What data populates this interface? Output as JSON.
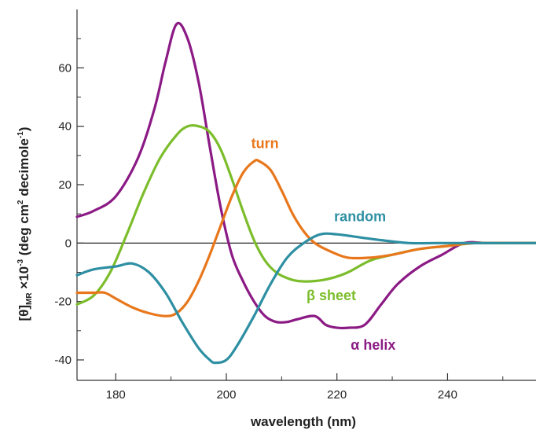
{
  "chart_data": {
    "type": "line",
    "title": "",
    "xlabel": "wavelength (nm)",
    "ylabel": "[θ]MR ×10-3 (deg cm2 decimole-1)",
    "ylabel_parts": {
      "theta": "[θ]",
      "theta_sub": "MR",
      "times10": " ×10",
      "exp": "-3",
      "unit_a": " (deg cm",
      "cm_exp": "2",
      "unit_b": " decimole",
      "mole_exp": "-1",
      "close": ")"
    },
    "xlim": [
      173,
      256
    ],
    "ylim": [
      -47,
      80
    ],
    "xticks": [
      180,
      200,
      220,
      240
    ],
    "yticks": [
      -40,
      -20,
      0,
      20,
      40,
      60
    ],
    "zero_line": true,
    "grid": false,
    "series": [
      {
        "name": "α helix",
        "color": "#8b1a85",
        "x": [
          173,
          176,
          180,
          184,
          187,
          189,
          191,
          193,
          195,
          197,
          199,
          201,
          203,
          205,
          207,
          209,
          211,
          213,
          216,
          218,
          220,
          222,
          225,
          228,
          231,
          235,
          239,
          243,
          247,
          251,
          256
        ],
        "y": [
          9,
          11,
          16,
          29,
          46,
          62,
          75,
          70,
          55,
          33,
          12,
          -4,
          -13,
          -20,
          -25,
          -27,
          -27,
          -26,
          -25,
          -28,
          -29,
          -29,
          -28,
          -21,
          -14,
          -8,
          -4,
          0,
          0,
          0,
          0
        ]
      },
      {
        "name": "β sheet",
        "color": "#7cbd2c",
        "x": [
          173,
          176,
          179,
          182,
          185,
          188,
          191,
          193,
          195,
          197,
          199,
          201,
          203,
          205,
          207,
          209,
          211,
          213,
          216,
          219,
          222,
          226,
          230,
          235,
          240,
          245,
          250,
          256
        ],
        "y": [
          -21,
          -18,
          -10,
          3,
          17,
          29,
          37,
          40,
          40,
          38,
          32,
          22,
          11,
          1,
          -6,
          -10,
          -12,
          -13,
          -13,
          -12,
          -10,
          -6,
          -4,
          -2,
          -1,
          0,
          0,
          0
        ]
      },
      {
        "name": "turn",
        "color": "#e8771c",
        "x": [
          173,
          176,
          178,
          180,
          183,
          186,
          189,
          191,
          193,
          195,
          197,
          199,
          201,
          203,
          205,
          206,
          208,
          210,
          212,
          214,
          216,
          219,
          222,
          226,
          230,
          235,
          240,
          245,
          256
        ],
        "y": [
          -17,
          -17,
          -17,
          -19,
          -22,
          -24,
          -25,
          -24,
          -20,
          -13,
          -4,
          6,
          16,
          24,
          28,
          28,
          25,
          18,
          10,
          4,
          0,
          -3,
          -5,
          -5,
          -4,
          -2,
          -1,
          0,
          0
        ]
      },
      {
        "name": "random",
        "color": "#2e8fa3",
        "x": [
          173,
          176,
          180,
          183,
          186,
          189,
          192,
          195,
          197,
          198,
          200,
          202,
          205,
          208,
          211,
          214,
          217,
          220,
          224,
          228,
          233,
          238,
          243,
          248,
          256
        ],
        "y": [
          -11,
          -9,
          -8,
          -7,
          -10,
          -17,
          -27,
          -36,
          -40,
          -41,
          -40,
          -35,
          -25,
          -14,
          -5,
          0,
          3,
          3,
          2,
          1,
          0,
          0,
          0,
          0,
          0
        ]
      }
    ],
    "labels": [
      {
        "text": "turn",
        "series": "turn",
        "x": 204.5,
        "y": 32.5
      },
      {
        "text": "random",
        "series": "random",
        "x": 219.5,
        "y": 7.5
      },
      {
        "text": "β sheet",
        "series": "β sheet",
        "x": 214.5,
        "y": -19.5
      },
      {
        "text": "α helix",
        "series": "α helix",
        "x": 222.5,
        "y": -36.5
      }
    ]
  }
}
